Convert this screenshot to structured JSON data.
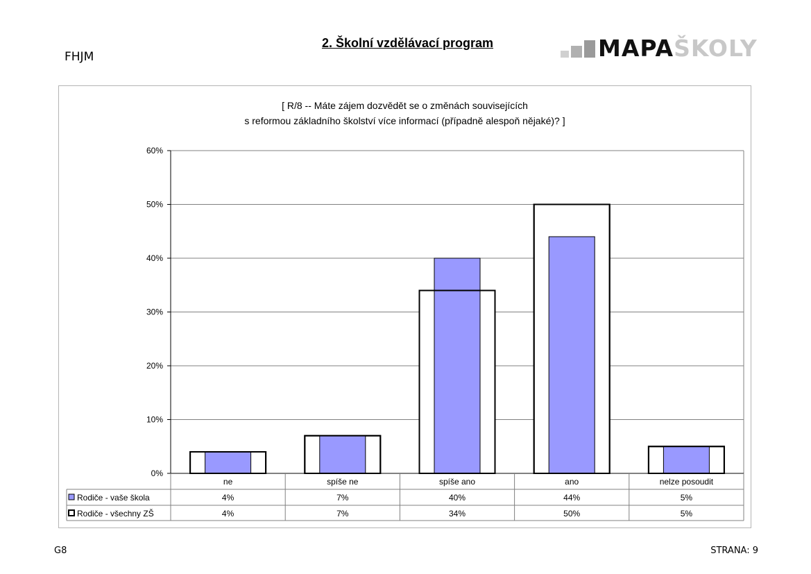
{
  "header": {
    "school_code": "FHJM",
    "section_title": "2. Školní vzdělávací program",
    "logo_bold": "MAPA",
    "logo_light": "ŠKOLY"
  },
  "chart_data": {
    "type": "bar",
    "title_line1": "[ R/8 -- Máte zájem dozvědět se o změnách souvisejících",
    "title_line2": "s reformou základního školství více informací (případně alespoň nějaké)? ]",
    "categories": [
      "ne",
      "spíše ne",
      "spíše ano",
      "ano",
      "nelze posoudit"
    ],
    "series": [
      {
        "name": "Rodiče - vaše škola",
        "values": [
          4,
          7,
          40,
          44,
          5
        ],
        "labels": [
          "4%",
          "7%",
          "40%",
          "44%",
          "5%"
        ],
        "color": "#9999ff",
        "style": "filled"
      },
      {
        "name": "Rodiče - všechny ZŠ",
        "values": [
          4,
          7,
          34,
          50,
          5
        ],
        "labels": [
          "4%",
          "7%",
          "34%",
          "50%",
          "5%"
        ],
        "color": "#ffffff",
        "style": "outline"
      }
    ],
    "ylim": [
      0,
      60
    ],
    "yticks": [
      0,
      10,
      20,
      30,
      40,
      50,
      60
    ],
    "ytick_labels": [
      "0%",
      "10%",
      "20%",
      "30%",
      "40%",
      "50%",
      "60%"
    ],
    "grid": true,
    "legend": "data-table"
  },
  "footer": {
    "left": "G8",
    "right": "STRANA: 9"
  }
}
